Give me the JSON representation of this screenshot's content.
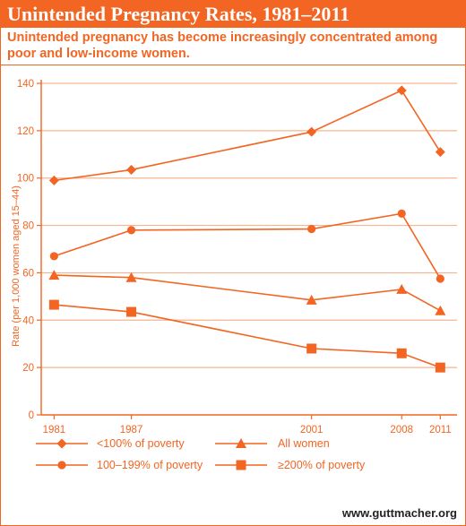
{
  "colors": {
    "accent": "#f26522",
    "grid": "#f7b48f",
    "source_text": "#222222"
  },
  "source": "www.guttmacher.org",
  "chart_data": {
    "type": "line",
    "title": "Unintended Pregnancy Rates, 1981–2011",
    "subtitle": "Unintended pregnancy has become increasingly concentrated among poor and low-income women.",
    "xlabel": "",
    "ylabel": "Rate (per 1,000 women aged 15–44)",
    "x": [
      1981,
      1987,
      2001,
      2008,
      2011
    ],
    "xtick_labels": [
      "1981",
      "1987",
      "2001",
      "2008",
      "2011"
    ],
    "ylim": [
      0,
      140
    ],
    "yticks": [
      0,
      20,
      40,
      60,
      80,
      100,
      120,
      140
    ],
    "grid": "horizontal",
    "legend_placement": "bottom",
    "series": [
      {
        "name": "<100% of poverty",
        "marker": "diamond",
        "values": [
          99,
          103.5,
          119.5,
          137,
          111
        ]
      },
      {
        "name": "All women",
        "marker": "triangle",
        "values": [
          59,
          58,
          48.5,
          53,
          44
        ]
      },
      {
        "name": "100–199% of poverty",
        "marker": "circle",
        "values": [
          67,
          78,
          78.5,
          85,
          57.5
        ]
      },
      {
        "name": "≥200% of poverty",
        "marker": "square",
        "values": [
          46.5,
          43.5,
          28,
          26,
          20
        ]
      }
    ]
  }
}
